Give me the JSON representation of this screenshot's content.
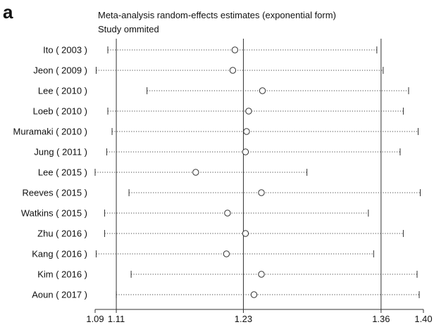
{
  "panel_label": "a",
  "chart_data": {
    "type": "forest",
    "title": "Meta-analysis random-effects estimates (exponential form)",
    "subtitle": "Study ommited",
    "xlim": [
      1.09,
      1.4
    ],
    "xticks": [
      1.09,
      1.11,
      1.23,
      1.36,
      1.4
    ],
    "xtick_labels": [
      "1.09",
      "1.11",
      "1.23",
      "1.36",
      "1.40"
    ],
    "reference_lines": [
      1.11,
      1.23,
      1.36
    ],
    "studies": [
      {
        "label": "Ito ( 2003 )",
        "estimate": 1.222,
        "lower": 1.102,
        "upper": 1.356
      },
      {
        "label": "Jeon ( 2009 )",
        "estimate": 1.22,
        "lower": 1.091,
        "upper": 1.362
      },
      {
        "label": "Lee ( 2010 )",
        "estimate": 1.248,
        "lower": 1.139,
        "upper": 1.386
      },
      {
        "label": "Loeb ( 2010 )",
        "estimate": 1.235,
        "lower": 1.102,
        "upper": 1.381
      },
      {
        "label": "Muramaki ( 2010 )",
        "estimate": 1.233,
        "lower": 1.106,
        "upper": 1.395
      },
      {
        "label": "Jung ( 2011 )",
        "estimate": 1.232,
        "lower": 1.101,
        "upper": 1.378
      },
      {
        "label": "Lee ( 2015 )",
        "estimate": 1.185,
        "lower": 1.09,
        "upper": 1.29
      },
      {
        "label": "Reeves ( 2015 )",
        "estimate": 1.247,
        "lower": 1.122,
        "upper": 1.397
      },
      {
        "label": "Watkins ( 2015 )",
        "estimate": 1.215,
        "lower": 1.099,
        "upper": 1.348
      },
      {
        "label": "Zhu ( 2016 )",
        "estimate": 1.232,
        "lower": 1.099,
        "upper": 1.381
      },
      {
        "label": "Kang ( 2016 )",
        "estimate": 1.214,
        "lower": 1.091,
        "upper": 1.353
      },
      {
        "label": "Kim ( 2016 )",
        "estimate": 1.247,
        "lower": 1.124,
        "upper": 1.394
      },
      {
        "label": "Aoun ( 2017 )",
        "estimate": 1.24,
        "lower": 1.11,
        "upper": 1.396
      }
    ]
  }
}
